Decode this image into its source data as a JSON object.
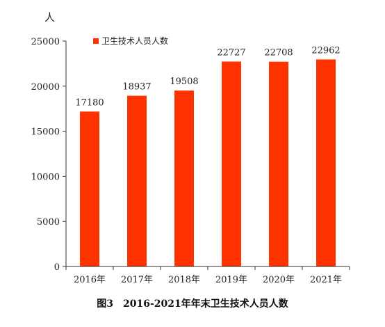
{
  "chart_data": {
    "type": "bar",
    "title": "图3　2016-2021年年末卫生技术人员人数",
    "ylabel": "人",
    "xlabel": "",
    "categories": [
      "2016年",
      "2017年",
      "2018年",
      "2019年",
      "2020年",
      "2021年"
    ],
    "series": [
      {
        "name": "卫生技术人员人数",
        "values": [
          17180,
          18937,
          19508,
          22727,
          22708,
          22962
        ]
      }
    ],
    "ylim": [
      0,
      25000
    ],
    "yticks": [
      0,
      5000,
      10000,
      15000,
      20000,
      25000
    ],
    "legend_position": "top-left",
    "grid": false,
    "colors": {
      "bar": "#ff3300",
      "axis": "#333333"
    }
  }
}
